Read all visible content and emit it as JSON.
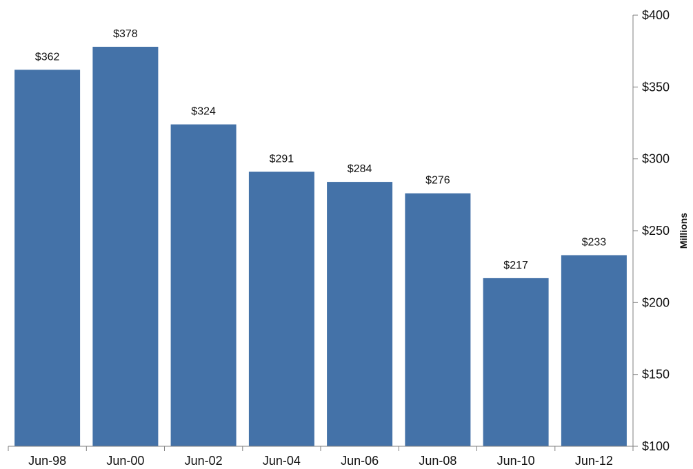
{
  "chart_data": {
    "type": "bar",
    "categories": [
      "Jun-98",
      "Jun-00",
      "Jun-02",
      "Jun-04",
      "Jun-06",
      "Jun-08",
      "Jun-10",
      "Jun-12"
    ],
    "values": [
      362,
      378,
      324,
      291,
      284,
      276,
      217,
      233
    ],
    "data_labels": [
      "$362",
      "$378",
      "$324",
      "$291",
      "$284",
      "$276",
      "$217",
      "$233"
    ],
    "title": "",
    "xlabel": "",
    "ylabel": "Millions",
    "ylim": [
      100,
      400
    ],
    "y_ticks": [
      100,
      150,
      200,
      250,
      300,
      350,
      400
    ],
    "y_tick_labels": [
      "$100",
      "$150",
      "$200",
      "$250",
      "$300",
      "$350",
      "$400"
    ],
    "y_axis_side": "right",
    "grid": false,
    "legend": "none",
    "colors": {
      "bar": "#4472A8"
    }
  }
}
